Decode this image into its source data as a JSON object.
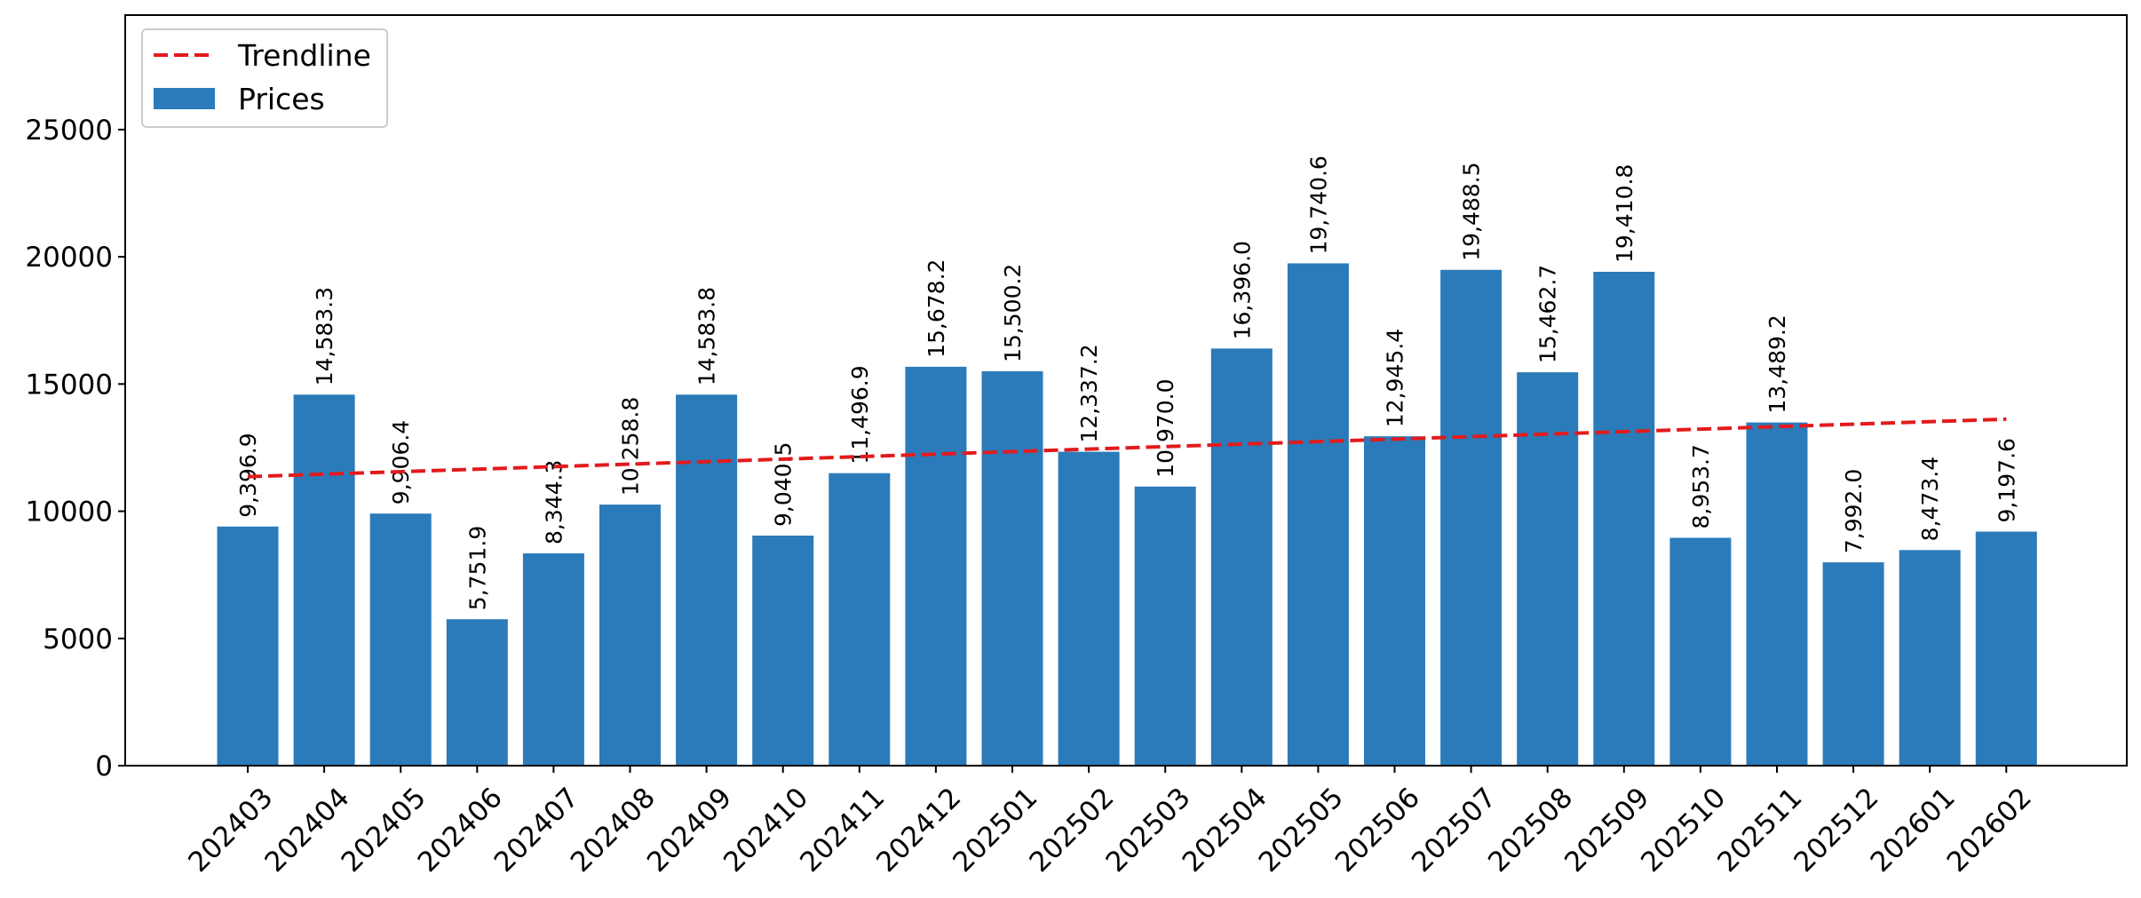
{
  "chart_data": {
    "type": "bar",
    "categories": [
      "202403",
      "202404",
      "202405",
      "202406",
      "202407",
      "202408",
      "202409",
      "202410",
      "202411",
      "202412",
      "202501",
      "202502",
      "202503",
      "202504",
      "202505",
      "202506",
      "202507",
      "202508",
      "202509",
      "202510",
      "202511",
      "202512",
      "202601",
      "202602"
    ],
    "values": [
      9396.9,
      14583.3,
      9906.4,
      5751.9,
      8344.3,
      10258.8,
      14583.8,
      9040.5,
      11496.9,
      15678.2,
      15500.2,
      12337.2,
      10970.0,
      16396.0,
      19740.6,
      12945.4,
      19488.5,
      15462.7,
      19410.8,
      8953.7,
      13489.2,
      7992.0,
      8473.4,
      9197.6
    ],
    "value_labels": [
      "9,396.9",
      "14,583.3",
      "9,906.4",
      "5,751.9",
      "8,344.3",
      "10,258.8",
      "14,583.8",
      "9,040.5",
      "11,496.9",
      "15,678.2",
      "15,500.2",
      "12,337.2",
      "10,970.0",
      "16,396.0",
      "19,740.6",
      "12,945.4",
      "19,488.5",
      "15,462.7",
      "19,410.8",
      "8,953.7",
      "13,489.2",
      "7,992.0",
      "8,473.4",
      "9,197.6"
    ],
    "series": [
      {
        "name": "Prices",
        "kind": "bar",
        "color": "#2b7bba"
      },
      {
        "name": "Trendline",
        "kind": "line",
        "style": "dashed",
        "color": "#e31a1c",
        "start_value": 11360,
        "end_value": 13620
      }
    ],
    "title": "",
    "xlabel": "",
    "ylabel": "",
    "ylim": [
      0,
      29500
    ],
    "yticks": [
      0,
      5000,
      10000,
      15000,
      20000,
      25000
    ],
    "ytick_labels": [
      "0",
      "5000",
      "10000",
      "15000",
      "20000",
      "25000"
    ],
    "grid": false,
    "legend": {
      "position": "top-left",
      "entries": [
        "Trendline",
        "Prices"
      ]
    }
  }
}
